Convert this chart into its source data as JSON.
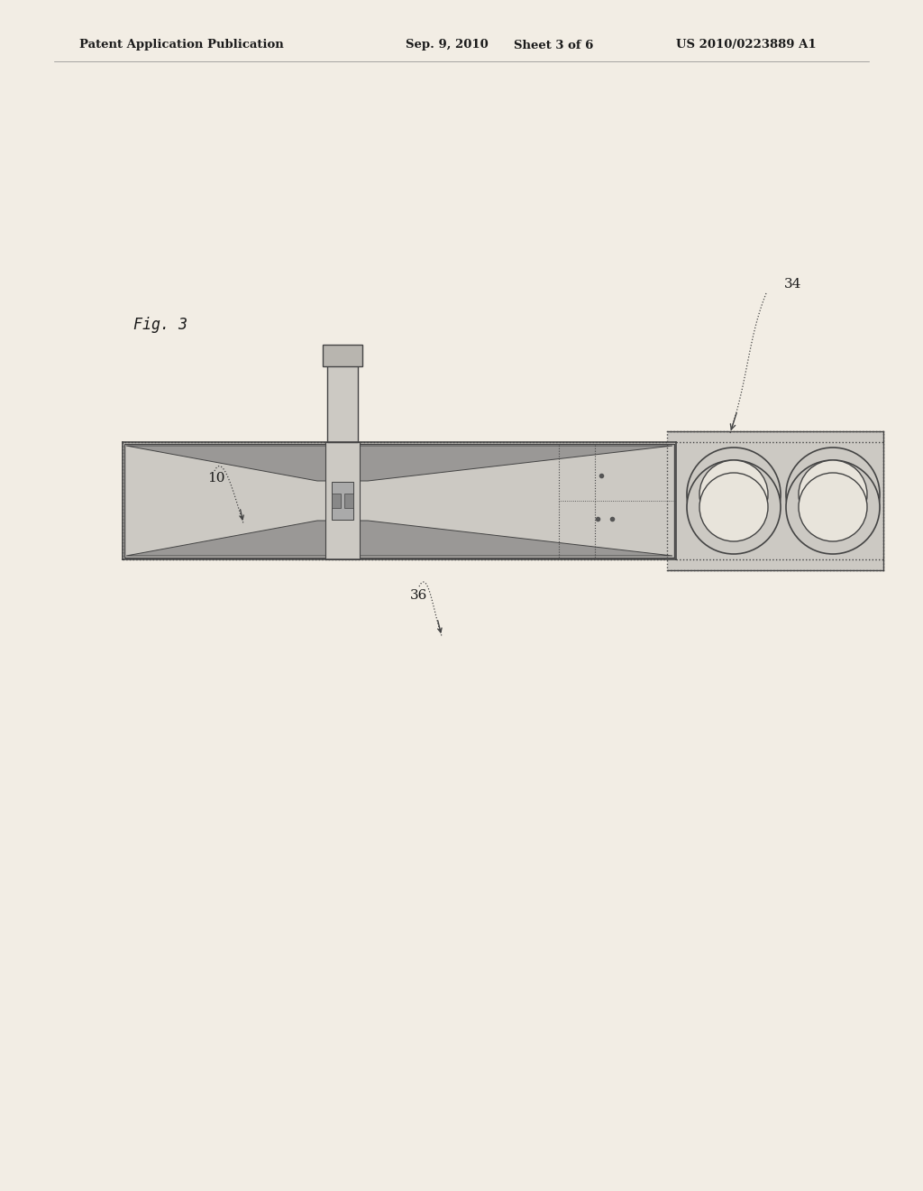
{
  "bg_color": "#f2ede4",
  "header_text1": "Patent Application Publication",
  "header_text2": "Sep. 9, 2010",
  "header_text3": "Sheet 3 of 6",
  "header_text4": "US 2010/0223889 A1",
  "fig_label": "Fig. 3",
  "label_34": "34",
  "label_36": "36",
  "label_10": "10",
  "line_color": "#444444",
  "fill_gray_dark": "#9a9896",
  "fill_gray_light": "#ccc9c3",
  "fill_gray_med": "#b8b5af",
  "fill_white": "#f0ece3",
  "fill_circle": "#e8e4db"
}
